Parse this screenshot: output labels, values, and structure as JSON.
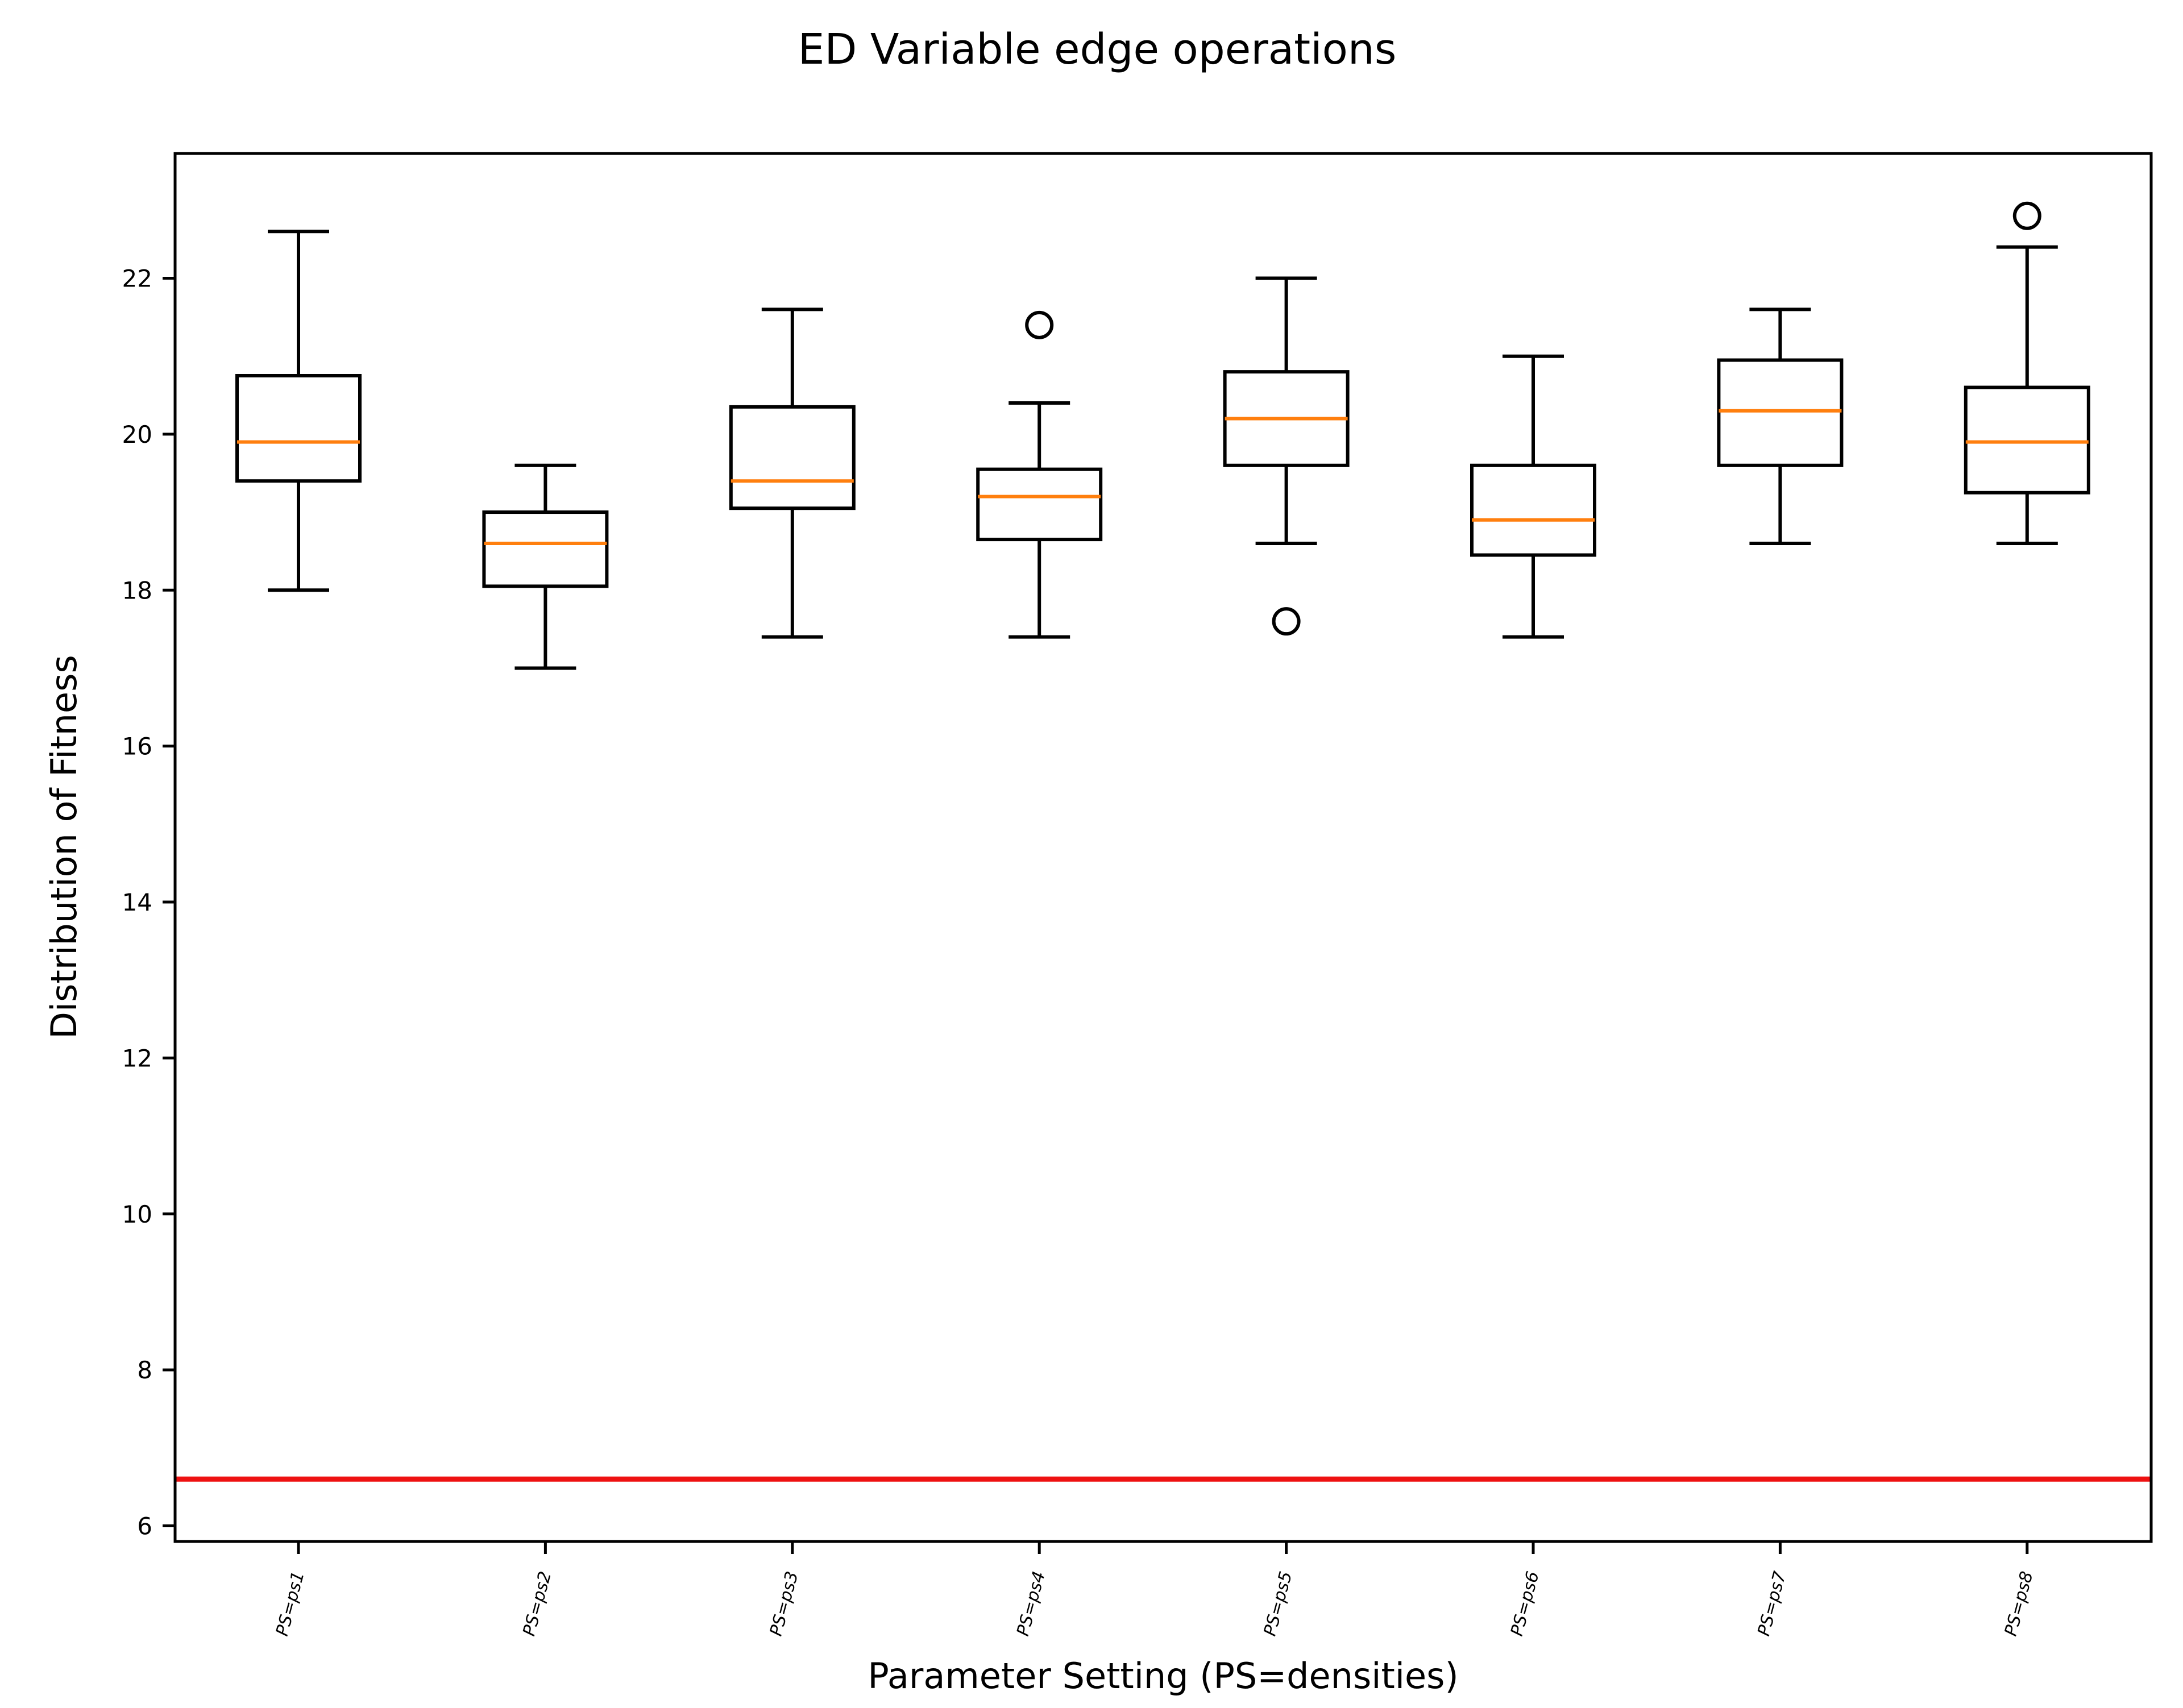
{
  "chart_data": {
    "type": "box",
    "title": "ED Variable edge operations",
    "xlabel": "Parameter Setting (PS=densities)",
    "ylabel": "Distribution of Fitness",
    "ylim": [
      5.8,
      23.6
    ],
    "yticks": [
      6,
      8,
      10,
      12,
      14,
      16,
      18,
      20,
      22
    ],
    "categories": [
      "PS=ps1",
      "PS=ps2",
      "PS=ps3",
      "PS=ps4",
      "PS=ps5",
      "PS=ps6",
      "PS=ps7",
      "PS=ps8"
    ],
    "boxes": [
      {
        "category": "PS=ps1",
        "whisker_low": 18.0,
        "q1": 19.4,
        "median": 19.9,
        "q3": 20.75,
        "whisker_high": 22.6,
        "outliers": []
      },
      {
        "category": "PS=ps2",
        "whisker_low": 17.0,
        "q1": 18.05,
        "median": 18.6,
        "q3": 19.0,
        "whisker_high": 19.6,
        "outliers": []
      },
      {
        "category": "PS=ps3",
        "whisker_low": 17.4,
        "q1": 19.05,
        "median": 19.4,
        "q3": 20.35,
        "whisker_high": 21.6,
        "outliers": []
      },
      {
        "category": "PS=ps4",
        "whisker_low": 17.4,
        "q1": 18.65,
        "median": 19.2,
        "q3": 19.55,
        "whisker_high": 20.4,
        "outliers": [
          21.4
        ]
      },
      {
        "category": "PS=ps5",
        "whisker_low": 18.6,
        "q1": 19.6,
        "median": 20.2,
        "q3": 20.8,
        "whisker_high": 22.0,
        "outliers": [
          17.6
        ]
      },
      {
        "category": "PS=ps6",
        "whisker_low": 17.4,
        "q1": 18.45,
        "median": 18.9,
        "q3": 19.6,
        "whisker_high": 21.0,
        "outliers": []
      },
      {
        "category": "PS=ps7",
        "whisker_low": 18.6,
        "q1": 19.6,
        "median": 20.3,
        "q3": 20.95,
        "whisker_high": 21.6,
        "outliers": []
      },
      {
        "category": "PS=ps8",
        "whisker_low": 18.6,
        "q1": 19.25,
        "median": 19.9,
        "q3": 20.6,
        "whisker_high": 22.4,
        "outliers": [
          22.8
        ]
      }
    ],
    "reference_line": {
      "y": 6.6,
      "color": "#ee1111"
    },
    "colors": {
      "box": "#000000",
      "median": "#ff7f0e",
      "axes": "#000000"
    },
    "grid": false,
    "legend": "none"
  }
}
